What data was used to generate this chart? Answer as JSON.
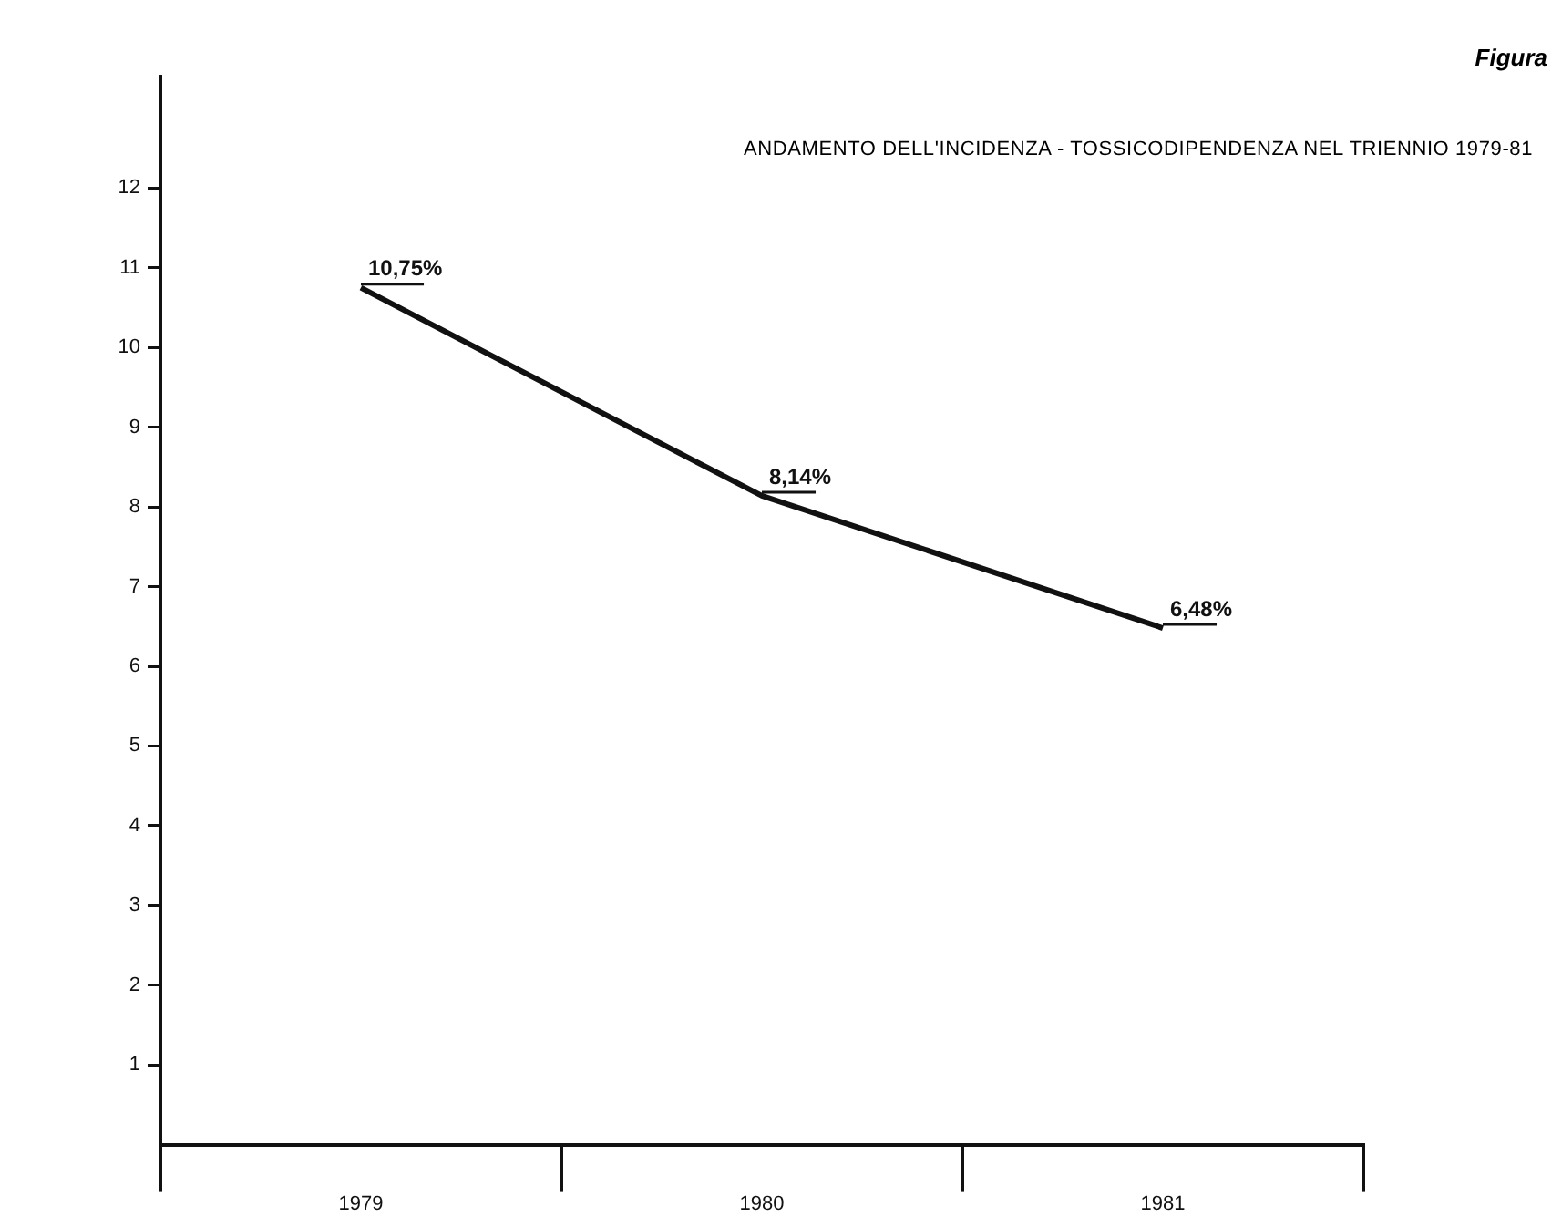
{
  "chart_data": {
    "type": "line",
    "title": "ANDAMENTO DELL'INCIDENZA - TOSSICODIPENDENZA NEL TRIENNIO 1979-81",
    "annotations": [
      "Figura"
    ],
    "categories": [
      "1979",
      "1980",
      "1981"
    ],
    "series": [
      {
        "color": "#111111",
        "values": [
          10.75,
          8.14,
          6.48
        ],
        "value_labels": [
          "10,75%",
          "8,14%",
          "6,48%"
        ]
      }
    ],
    "ylim": [
      0,
      13.4
    ],
    "yticks": [
      1,
      2,
      3,
      4,
      5,
      6,
      7,
      8,
      9,
      10,
      11,
      12
    ],
    "grid": false,
    "legend": false,
    "marker": "none",
    "line_style": "solid"
  }
}
